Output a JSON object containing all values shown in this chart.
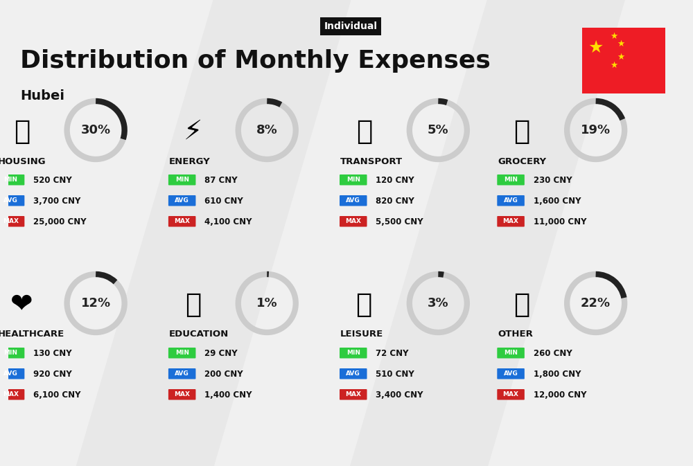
{
  "title": "Distribution of Monthly Expenses",
  "subtitle": "Individual",
  "location": "Hubei",
  "bg_color": "#f0f0f0",
  "categories": [
    {
      "name": "HOUSING",
      "pct": 30,
      "min_val": "520 CNY",
      "avg_val": "3,700 CNY",
      "max_val": "25,000 CNY",
      "emoji": "🏗",
      "row": 0,
      "col": 0
    },
    {
      "name": "ENERGY",
      "pct": 8,
      "min_val": "87 CNY",
      "avg_val": "610 CNY",
      "max_val": "4,100 CNY",
      "emoji": "⚡",
      "row": 0,
      "col": 1
    },
    {
      "name": "TRANSPORT",
      "pct": 5,
      "min_val": "120 CNY",
      "avg_val": "820 CNY",
      "max_val": "5,500 CNY",
      "emoji": "🚌",
      "row": 0,
      "col": 2
    },
    {
      "name": "GROCERY",
      "pct": 19,
      "min_val": "230 CNY",
      "avg_val": "1,600 CNY",
      "max_val": "11,000 CNY",
      "emoji": "🛒",
      "row": 0,
      "col": 3
    },
    {
      "name": "HEALTHCARE",
      "pct": 12,
      "min_val": "130 CNY",
      "avg_val": "920 CNY",
      "max_val": "6,100 CNY",
      "emoji": "❤️",
      "row": 1,
      "col": 0
    },
    {
      "name": "EDUCATION",
      "pct": 1,
      "min_val": "29 CNY",
      "avg_val": "200 CNY",
      "max_val": "1,400 CNY",
      "emoji": "🎓",
      "row": 1,
      "col": 1
    },
    {
      "name": "LEISURE",
      "pct": 3,
      "min_val": "72 CNY",
      "avg_val": "510 CNY",
      "max_val": "3,400 CNY",
      "emoji": "🛍",
      "row": 1,
      "col": 2
    },
    {
      "name": "OTHER",
      "pct": 22,
      "min_val": "260 CNY",
      "avg_val": "1,800 CNY",
      "max_val": "12,000 CNY",
      "emoji": "💰",
      "row": 1,
      "col": 3
    }
  ],
  "min_color": "#2ecc40",
  "avg_color": "#1a6ed8",
  "max_color": "#cc2222",
  "label_text_color": "#ffffff",
  "arc_dark_color": "#222222",
  "arc_light_color": "#cccccc",
  "title_color": "#111111",
  "subtitle_bg": "#111111",
  "subtitle_text": "#ffffff"
}
